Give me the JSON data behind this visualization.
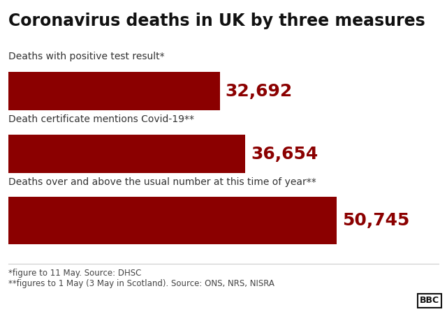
{
  "title": "Coronavirus deaths in UK by three measures",
  "categories": [
    "Deaths with positive test result*",
    "Death certificate mentions Covid-19**",
    "Deaths over and above the usual number at this time of year**"
  ],
  "values": [
    32692,
    36654,
    50745
  ],
  "value_labels": [
    "32,692",
    "36,654",
    "50,745"
  ],
  "max_value": 50745,
  "bar_color": "#8B0000",
  "value_color": "#8B0000",
  "label_color": "#333333",
  "background_color": "#ffffff",
  "footnote1": "*figure to 11 May. Source: DHSC",
  "footnote2": "**figures to 1 May (3 May in Scotland). Source: ONS, NRS, NISRA",
  "bbc_text": "BBC",
  "title_fontsize": 17,
  "category_fontsize": 10,
  "value_fontsize": 18,
  "footnote_fontsize": 8.5
}
